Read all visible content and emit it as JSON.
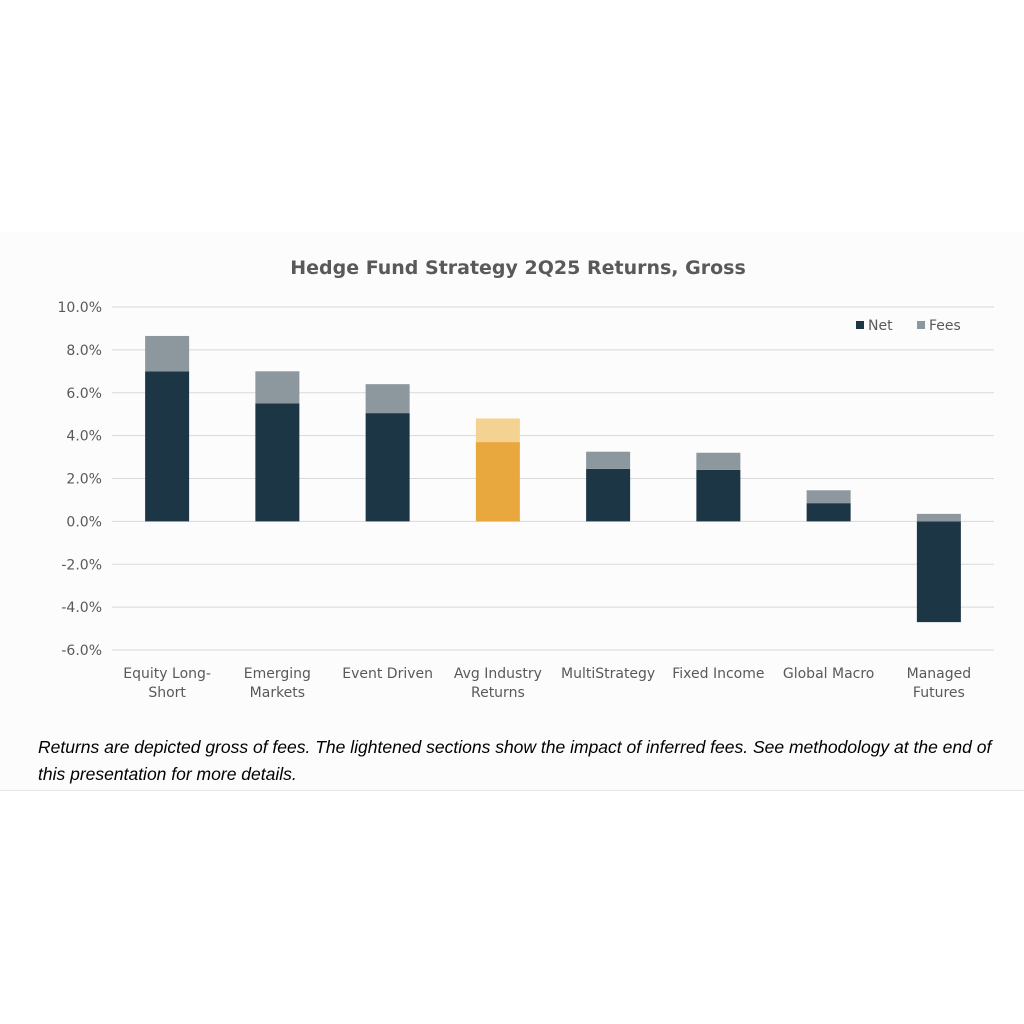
{
  "chart_data": {
    "type": "bar",
    "stacked": true,
    "title": "Hedge Fund Strategy 2Q25 Returns, Gross",
    "categories": [
      [
        "Equity Long-",
        "Short"
      ],
      [
        "Emerging",
        "Markets"
      ],
      [
        "Event Driven"
      ],
      [
        "Avg Industry",
        "Returns"
      ],
      [
        "MultiStrategy"
      ],
      [
        "Fixed Income"
      ],
      [
        "Global Macro"
      ],
      [
        "Managed",
        "Futures"
      ]
    ],
    "series": [
      {
        "name": "Net",
        "values": [
          7.0,
          5.5,
          5.05,
          3.7,
          2.45,
          2.4,
          0.85,
          -4.7
        ]
      },
      {
        "name": "Fees",
        "values": [
          1.65,
          1.5,
          1.35,
          1.1,
          0.8,
          0.8,
          0.6,
          0.35
        ]
      }
    ],
    "ylim": [
      -6,
      10
    ],
    "yticks": [
      "10.0%",
      "8.0%",
      "6.0%",
      "4.0%",
      "2.0%",
      "0.0%",
      "-2.0%",
      "-4.0%",
      "-6.0%"
    ],
    "grid": true,
    "legend": "top-right",
    "highlight_category_index": 3,
    "colors": {
      "net": "#1c3646",
      "fees": "#8c979e",
      "highlight_net": "#e9a83d",
      "highlight_fees": "#f4d291",
      "grid": "#d9d9d9",
      "text": "#595959"
    }
  },
  "caption": "Returns are depicted gross of fees.  The lightened sections show the impact of inferred fees.  See methodology at the end of this presentation for more details."
}
